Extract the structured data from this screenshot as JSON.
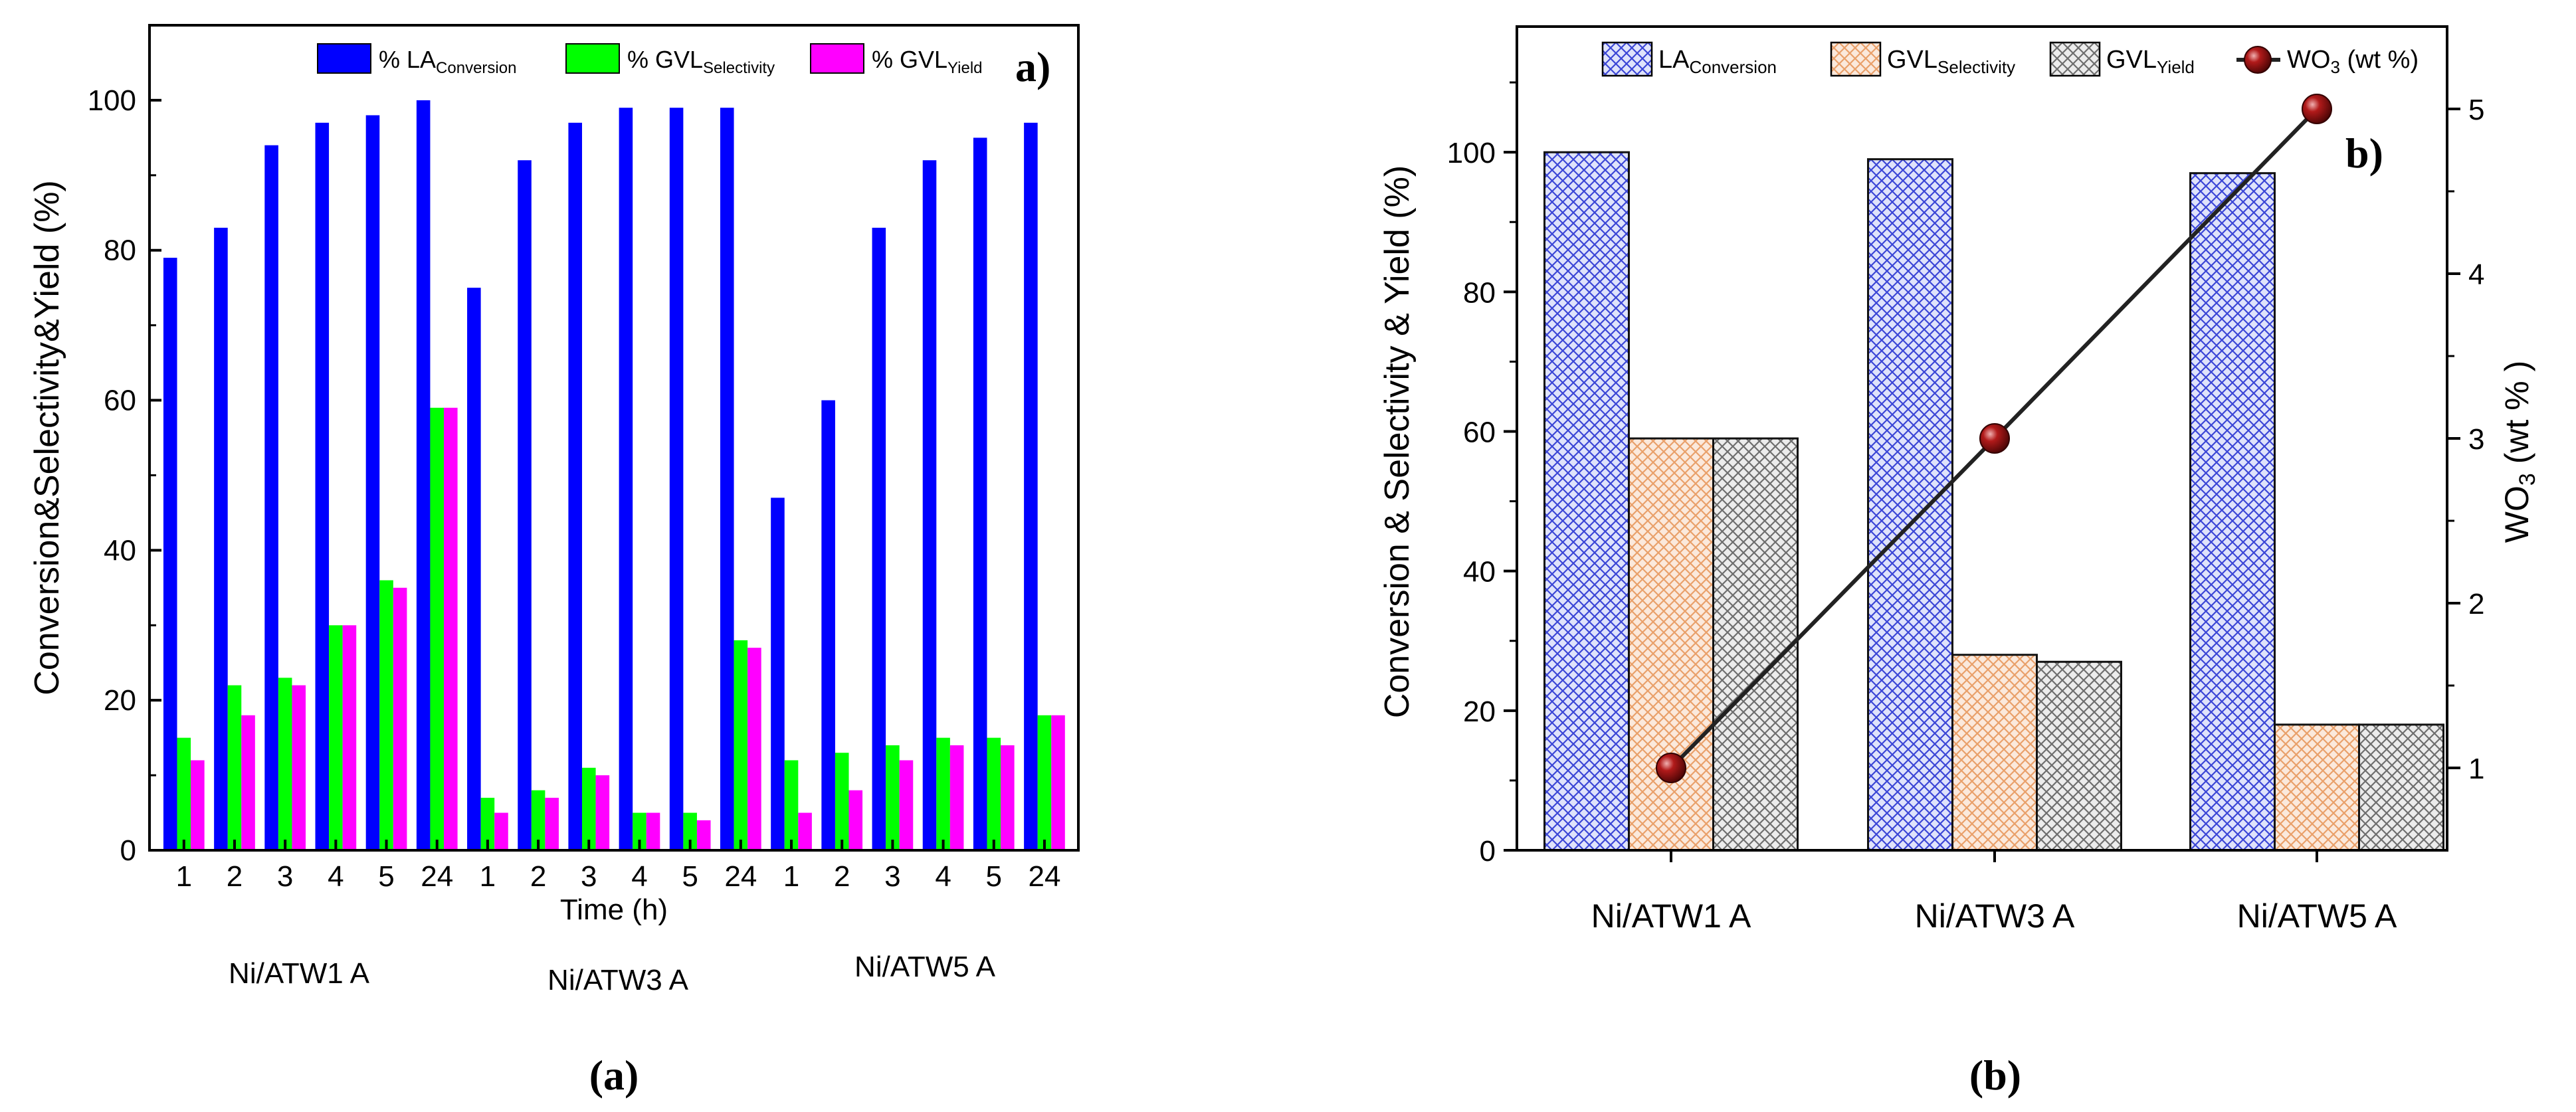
{
  "panel_a": {
    "letter": "a)",
    "caption": "(a)",
    "legend": [
      {
        "prefix": "% LA",
        "sub": "Conversion",
        "color": "#0000ff"
      },
      {
        "prefix": "% GVL",
        "sub": "Selectivity",
        "color": "#00ff00"
      },
      {
        "prefix": "% GVL",
        "sub": "Yield",
        "color": "#ff00ff"
      }
    ],
    "group_labels": [
      "Ni/ATW1 A",
      "Ni/ATW3 A",
      "Ni/ATW5 A"
    ]
  },
  "panel_b": {
    "letter": "b)",
    "caption": "(b)",
    "legend": [
      {
        "prefix": "LA",
        "sub": "Conversion",
        "pattern": "blue"
      },
      {
        "prefix": "GVL",
        "sub": "Selectivity",
        "pattern": "orange"
      },
      {
        "prefix": "GVL",
        "sub": "Yield",
        "pattern": "gray"
      },
      {
        "prefix": "WO",
        "sub": "3",
        "suffix": " (wt %)",
        "marker": "line"
      }
    ]
  },
  "chart_data": [
    {
      "type": "bar",
      "xlabel": "Time (h)",
      "ylabel": "Conversion&Selectivity&Yield (%)",
      "ylim": [
        0,
        110
      ],
      "yticks": [
        0,
        20,
        40,
        60,
        80,
        100
      ],
      "categories": [
        "1",
        "2",
        "3",
        "4",
        "5",
        "24",
        "1",
        "2",
        "3",
        "4",
        "5",
        "24",
        "1",
        "2",
        "3",
        "4",
        "5",
        "24"
      ],
      "groups": [
        "Ni/ATW1 A",
        "Ni/ATW3 A",
        "Ni/ATW5 A"
      ],
      "series": [
        {
          "name": "% LA Conversion",
          "color": "#0000ff",
          "values": [
            79,
            83,
            94,
            97,
            98,
            100,
            75,
            92,
            97,
            99,
            99,
            99,
            47,
            60,
            83,
            92,
            95,
            97
          ]
        },
        {
          "name": "% GVL Selectivity",
          "color": "#00ff00",
          "values": [
            15,
            22,
            23,
            30,
            36,
            59,
            7,
            8,
            11,
            5,
            5,
            28,
            12,
            13,
            14,
            15,
            15,
            18
          ]
        },
        {
          "name": "% GVL Yield",
          "color": "#ff00ff",
          "values": [
            12,
            18,
            22,
            30,
            35,
            59,
            5,
            7,
            10,
            5,
            4,
            27,
            5,
            8,
            12,
            14,
            14,
            18
          ]
        }
      ]
    },
    {
      "type": "bar",
      "ylabel": "Conversion & Selectivity & Yield (%)",
      "ylabel_right": "WO3 (wt %)",
      "ylim": [
        0,
        118
      ],
      "yticks": [
        0,
        20,
        40,
        60,
        80,
        100
      ],
      "ylim_right": [
        0.5,
        5.5
      ],
      "yticks_right": [
        1,
        2,
        3,
        4,
        5
      ],
      "categories": [
        "Ni/ATW1 A",
        "Ni/ATW3 A",
        "Ni/ATW5 A"
      ],
      "series": [
        {
          "name": "LA Conversion",
          "color": "#3b46d6",
          "values": [
            100,
            99,
            97
          ]
        },
        {
          "name": "GVL Selectivity",
          "color": "#e9a06a",
          "values": [
            59,
            28,
            18
          ]
        },
        {
          "name": "GVL Yield",
          "color": "#8a8a8a",
          "values": [
            59,
            27,
            18
          ]
        },
        {
          "name": "WO3 (wt %)",
          "color": "#7a0f0f",
          "axis": "right",
          "type": "line",
          "values": [
            1,
            3,
            5
          ]
        }
      ]
    }
  ]
}
